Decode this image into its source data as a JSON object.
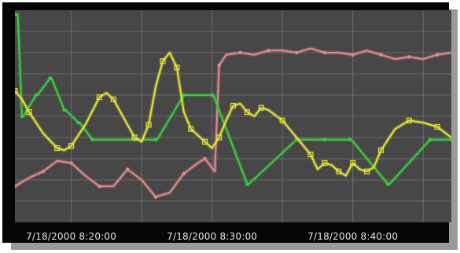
{
  "chart_data": {
    "type": "line",
    "title": "",
    "xlabel": "",
    "ylabel": "",
    "x_unit": "minutes",
    "xlim": [
      16,
      47
    ],
    "ylim": [
      0,
      100
    ],
    "grid": true,
    "x_tick_labels": [
      {
        "x": 20,
        "label": "7/18/2000  8:20:00"
      },
      {
        "x": 30,
        "label": "7/18/2000  8:30:00"
      },
      {
        "x": 40,
        "label": "7/18/2000  8:40:00"
      }
    ],
    "series": [
      {
        "color": "#e38a8a",
        "x": [
          16.0,
          17.0,
          18.0,
          19.0,
          20.0,
          21.0,
          22.0,
          23.0,
          24.0,
          25.0,
          26.0,
          27.0,
          28.0,
          29.0,
          29.5,
          30.2,
          30.5,
          31.0,
          32.0,
          33.0,
          34.0,
          35.0,
          36.0,
          37.0,
          38.0,
          39.0,
          40.0,
          41.0,
          42.0,
          43.0,
          44.0,
          45.0,
          46.0,
          47.0
        ],
        "y": [
          17,
          21,
          24,
          29,
          28,
          22,
          17,
          17,
          25,
          20,
          12,
          14,
          23,
          28,
          30,
          24,
          74,
          79,
          80,
          79,
          81,
          81,
          80,
          82,
          80,
          80,
          79,
          81,
          79,
          77,
          78,
          77,
          79,
          80
        ]
      },
      {
        "color": "#3ccc3c",
        "x": [
          16.0,
          16.2,
          16.5,
          16.6,
          17.5,
          17.6,
          18.5,
          18.6,
          19.5,
          19.6,
          20.5,
          20.6,
          21.5,
          21.6,
          24.5,
          24.6,
          26.0,
          26.1,
          28.0,
          28.1,
          30.0,
          30.1,
          32.5,
          32.6,
          36.0,
          36.1,
          38.0,
          38.1,
          39.8,
          39.9,
          42.5,
          42.6,
          45.5,
          45.6,
          47.0
        ],
        "y": [
          98,
          98,
          50,
          50,
          60,
          60,
          68,
          68,
          53,
          53,
          47,
          47,
          39,
          39,
          39,
          39,
          39,
          39,
          60,
          60,
          60,
          60,
          18,
          18,
          39,
          39,
          39,
          39,
          39,
          39,
          18,
          18,
          39,
          39,
          39
        ]
      },
      {
        "color": "#e4e43a",
        "x": [
          16.0,
          16.5,
          17.0,
          18.0,
          19.0,
          19.5,
          20.0,
          21.0,
          22.0,
          22.5,
          23.0,
          24.0,
          24.5,
          25.0,
          25.5,
          26.0,
          26.5,
          27.0,
          27.5,
          28.0,
          28.5,
          29.0,
          29.5,
          30.0,
          30.5,
          31.0,
          31.5,
          32.0,
          32.5,
          33.0,
          33.5,
          34.0,
          35.0,
          36.0,
          37.0,
          37.5,
          38.0,
          38.5,
          39.0,
          39.5,
          40.0,
          40.5,
          41.0,
          41.5,
          42.0,
          43.0,
          44.0,
          45.0,
          46.0,
          47.0
        ],
        "y": [
          62,
          58,
          52,
          42,
          35,
          34,
          36,
          46,
          59,
          61,
          58,
          46,
          40,
          38,
          46,
          64,
          76,
          80,
          73,
          52,
          44,
          41,
          38,
          35,
          40,
          48,
          55,
          56,
          52,
          50,
          54,
          53,
          48,
          40,
          32,
          25,
          28,
          27,
          24,
          22,
          28,
          25,
          24,
          26,
          34,
          44,
          48,
          47,
          45,
          40
        ]
      }
    ]
  }
}
